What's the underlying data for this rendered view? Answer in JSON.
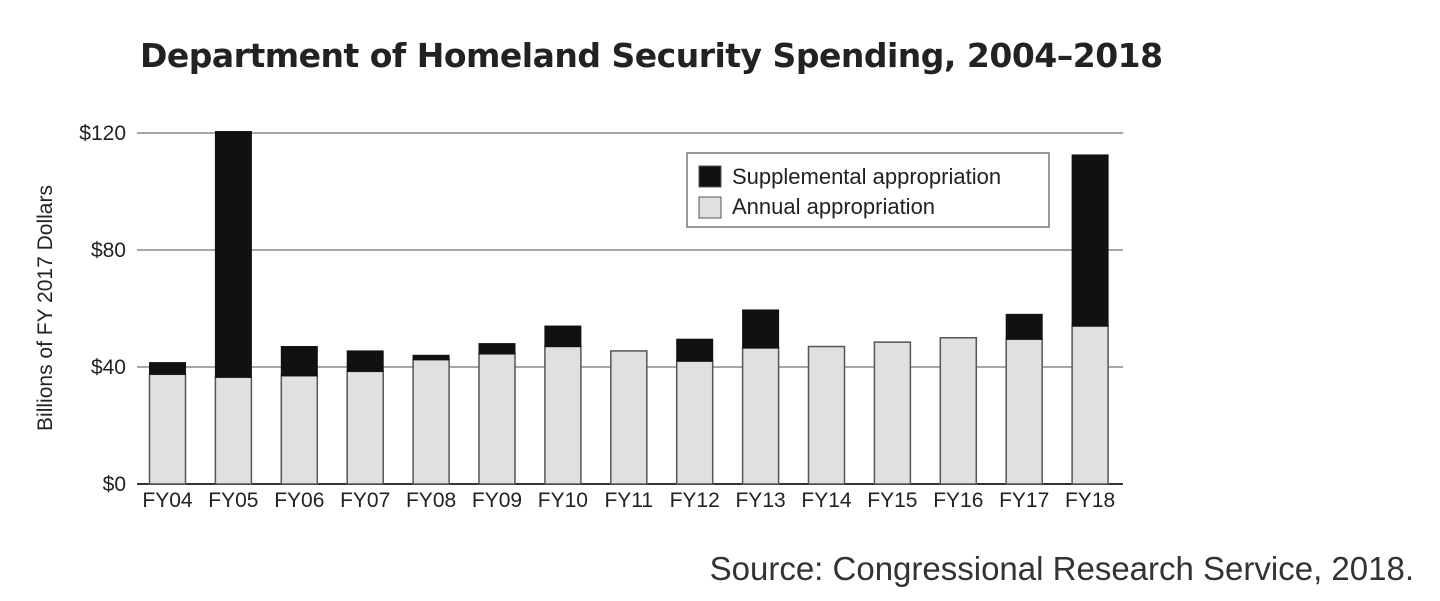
{
  "chart_data": {
    "type": "bar",
    "stacked": true,
    "title": "Department of Homeland Security Spending, 2004–2018",
    "ylabel": "Billions of FY 2017 Dollars",
    "xlabel": "",
    "ylim": [
      0,
      120
    ],
    "yticks": [
      0,
      40,
      80,
      120
    ],
    "ytick_labels": [
      "$0",
      "$40",
      "$80",
      "$120"
    ],
    "categories": [
      "FY04",
      "FY05",
      "FY06",
      "FY07",
      "FY08",
      "FY09",
      "FY10",
      "FY11",
      "FY12",
      "FY13",
      "FY14",
      "FY15",
      "FY16",
      "FY17",
      "FY18"
    ],
    "series": [
      {
        "name": "Annual appropriation",
        "color": "#e0e0e0",
        "values": [
          37.5,
          36.5,
          37,
          38.5,
          42.5,
          44.5,
          47,
          45.5,
          42,
          46.5,
          47,
          48.5,
          50,
          49.5,
          54
        ]
      },
      {
        "name": "Supplemental appropriation",
        "color": "#111111",
        "values": [
          4,
          84,
          10,
          7,
          1.5,
          3.5,
          7,
          0,
          7.5,
          13,
          0,
          0,
          0,
          8.5,
          58.5
        ]
      }
    ],
    "legend": {
      "position": "top-right",
      "entries": [
        "Supplemental appropriation",
        "Annual appropriation"
      ]
    },
    "grid": "horizontal",
    "source": "Source: Congressional Research Service, 2018."
  }
}
